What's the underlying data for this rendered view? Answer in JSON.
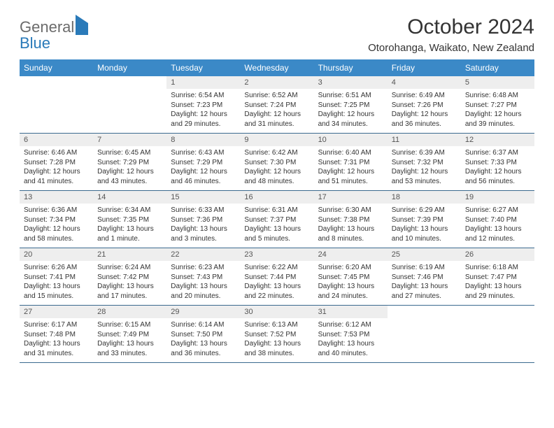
{
  "logo": {
    "text1": "General",
    "text2": "Blue"
  },
  "title": "October 2024",
  "location": "Otorohanga, Waikato, New Zealand",
  "day_headers": [
    "Sunday",
    "Monday",
    "Tuesday",
    "Wednesday",
    "Thursday",
    "Friday",
    "Saturday"
  ],
  "colors": {
    "header_bg": "#3b89c7",
    "header_text": "#ffffff",
    "daynum_bg": "#eeeeee",
    "row_border": "#3b6a8f",
    "logo_gray": "#6b6b6b",
    "logo_blue": "#2a7ab9"
  },
  "weeks": [
    [
      {
        "empty": true
      },
      {
        "empty": true
      },
      {
        "num": "1",
        "sunrise": "Sunrise: 6:54 AM",
        "sunset": "Sunset: 7:23 PM",
        "daylight": "Daylight: 12 hours and 29 minutes."
      },
      {
        "num": "2",
        "sunrise": "Sunrise: 6:52 AM",
        "sunset": "Sunset: 7:24 PM",
        "daylight": "Daylight: 12 hours and 31 minutes."
      },
      {
        "num": "3",
        "sunrise": "Sunrise: 6:51 AM",
        "sunset": "Sunset: 7:25 PM",
        "daylight": "Daylight: 12 hours and 34 minutes."
      },
      {
        "num": "4",
        "sunrise": "Sunrise: 6:49 AM",
        "sunset": "Sunset: 7:26 PM",
        "daylight": "Daylight: 12 hours and 36 minutes."
      },
      {
        "num": "5",
        "sunrise": "Sunrise: 6:48 AM",
        "sunset": "Sunset: 7:27 PM",
        "daylight": "Daylight: 12 hours and 39 minutes."
      }
    ],
    [
      {
        "num": "6",
        "sunrise": "Sunrise: 6:46 AM",
        "sunset": "Sunset: 7:28 PM",
        "daylight": "Daylight: 12 hours and 41 minutes."
      },
      {
        "num": "7",
        "sunrise": "Sunrise: 6:45 AM",
        "sunset": "Sunset: 7:29 PM",
        "daylight": "Daylight: 12 hours and 43 minutes."
      },
      {
        "num": "8",
        "sunrise": "Sunrise: 6:43 AM",
        "sunset": "Sunset: 7:29 PM",
        "daylight": "Daylight: 12 hours and 46 minutes."
      },
      {
        "num": "9",
        "sunrise": "Sunrise: 6:42 AM",
        "sunset": "Sunset: 7:30 PM",
        "daylight": "Daylight: 12 hours and 48 minutes."
      },
      {
        "num": "10",
        "sunrise": "Sunrise: 6:40 AM",
        "sunset": "Sunset: 7:31 PM",
        "daylight": "Daylight: 12 hours and 51 minutes."
      },
      {
        "num": "11",
        "sunrise": "Sunrise: 6:39 AM",
        "sunset": "Sunset: 7:32 PM",
        "daylight": "Daylight: 12 hours and 53 minutes."
      },
      {
        "num": "12",
        "sunrise": "Sunrise: 6:37 AM",
        "sunset": "Sunset: 7:33 PM",
        "daylight": "Daylight: 12 hours and 56 minutes."
      }
    ],
    [
      {
        "num": "13",
        "sunrise": "Sunrise: 6:36 AM",
        "sunset": "Sunset: 7:34 PM",
        "daylight": "Daylight: 12 hours and 58 minutes."
      },
      {
        "num": "14",
        "sunrise": "Sunrise: 6:34 AM",
        "sunset": "Sunset: 7:35 PM",
        "daylight": "Daylight: 13 hours and 1 minute."
      },
      {
        "num": "15",
        "sunrise": "Sunrise: 6:33 AM",
        "sunset": "Sunset: 7:36 PM",
        "daylight": "Daylight: 13 hours and 3 minutes."
      },
      {
        "num": "16",
        "sunrise": "Sunrise: 6:31 AM",
        "sunset": "Sunset: 7:37 PM",
        "daylight": "Daylight: 13 hours and 5 minutes."
      },
      {
        "num": "17",
        "sunrise": "Sunrise: 6:30 AM",
        "sunset": "Sunset: 7:38 PM",
        "daylight": "Daylight: 13 hours and 8 minutes."
      },
      {
        "num": "18",
        "sunrise": "Sunrise: 6:29 AM",
        "sunset": "Sunset: 7:39 PM",
        "daylight": "Daylight: 13 hours and 10 minutes."
      },
      {
        "num": "19",
        "sunrise": "Sunrise: 6:27 AM",
        "sunset": "Sunset: 7:40 PM",
        "daylight": "Daylight: 13 hours and 12 minutes."
      }
    ],
    [
      {
        "num": "20",
        "sunrise": "Sunrise: 6:26 AM",
        "sunset": "Sunset: 7:41 PM",
        "daylight": "Daylight: 13 hours and 15 minutes."
      },
      {
        "num": "21",
        "sunrise": "Sunrise: 6:24 AM",
        "sunset": "Sunset: 7:42 PM",
        "daylight": "Daylight: 13 hours and 17 minutes."
      },
      {
        "num": "22",
        "sunrise": "Sunrise: 6:23 AM",
        "sunset": "Sunset: 7:43 PM",
        "daylight": "Daylight: 13 hours and 20 minutes."
      },
      {
        "num": "23",
        "sunrise": "Sunrise: 6:22 AM",
        "sunset": "Sunset: 7:44 PM",
        "daylight": "Daylight: 13 hours and 22 minutes."
      },
      {
        "num": "24",
        "sunrise": "Sunrise: 6:20 AM",
        "sunset": "Sunset: 7:45 PM",
        "daylight": "Daylight: 13 hours and 24 minutes."
      },
      {
        "num": "25",
        "sunrise": "Sunrise: 6:19 AM",
        "sunset": "Sunset: 7:46 PM",
        "daylight": "Daylight: 13 hours and 27 minutes."
      },
      {
        "num": "26",
        "sunrise": "Sunrise: 6:18 AM",
        "sunset": "Sunset: 7:47 PM",
        "daylight": "Daylight: 13 hours and 29 minutes."
      }
    ],
    [
      {
        "num": "27",
        "sunrise": "Sunrise: 6:17 AM",
        "sunset": "Sunset: 7:48 PM",
        "daylight": "Daylight: 13 hours and 31 minutes."
      },
      {
        "num": "28",
        "sunrise": "Sunrise: 6:15 AM",
        "sunset": "Sunset: 7:49 PM",
        "daylight": "Daylight: 13 hours and 33 minutes."
      },
      {
        "num": "29",
        "sunrise": "Sunrise: 6:14 AM",
        "sunset": "Sunset: 7:50 PM",
        "daylight": "Daylight: 13 hours and 36 minutes."
      },
      {
        "num": "30",
        "sunrise": "Sunrise: 6:13 AM",
        "sunset": "Sunset: 7:52 PM",
        "daylight": "Daylight: 13 hours and 38 minutes."
      },
      {
        "num": "31",
        "sunrise": "Sunrise: 6:12 AM",
        "sunset": "Sunset: 7:53 PM",
        "daylight": "Daylight: 13 hours and 40 minutes."
      },
      {
        "empty": true
      },
      {
        "empty": true
      }
    ]
  ]
}
